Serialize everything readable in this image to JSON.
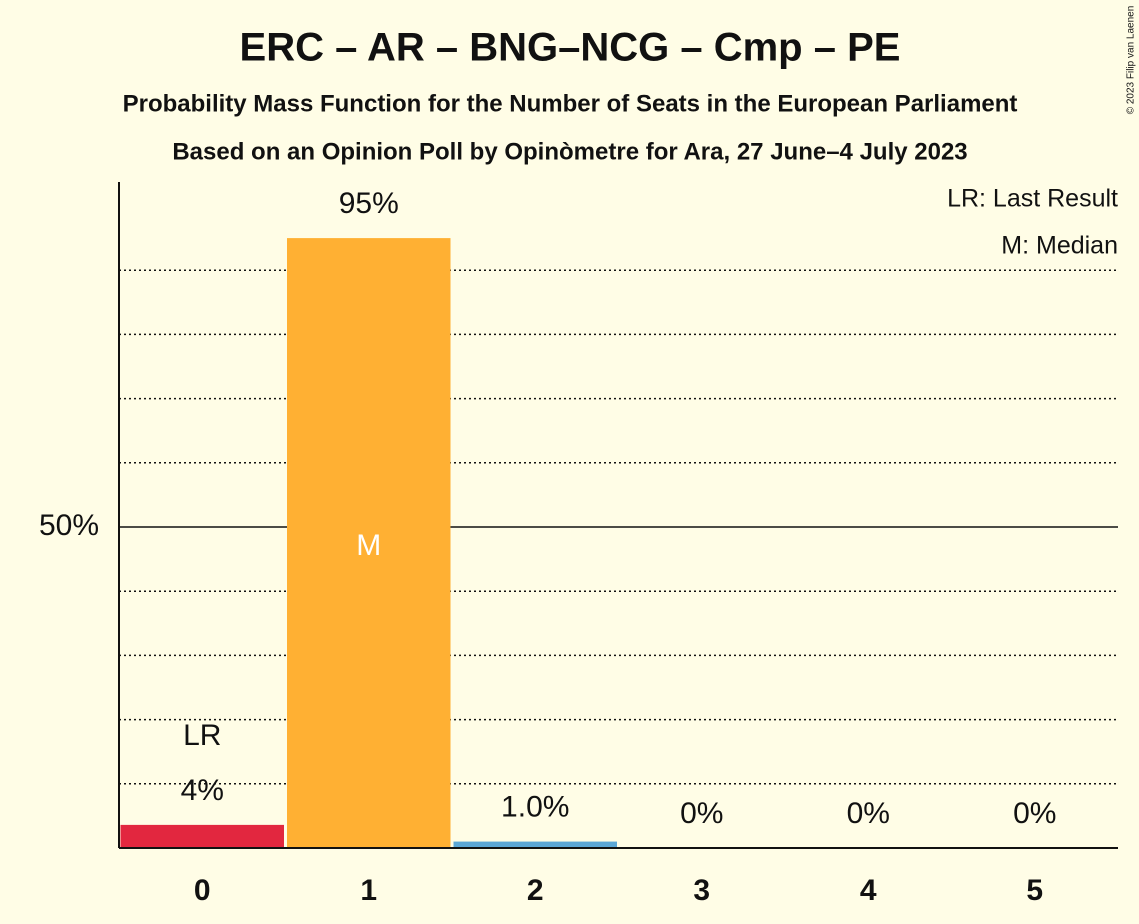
{
  "chart_data": {
    "type": "bar",
    "title": "ERC – AR – BNG–NCG – Cmp – PE",
    "subtitle": "Probability Mass Function for the Number of Seats in the European Parliament",
    "caption": "Based on an Opinion Poll by Opinòmetre for Ara, 27 June–4 July 2023",
    "copyright": "© 2023 Filip van Laenen",
    "categories": [
      "0",
      "1",
      "2",
      "3",
      "4",
      "5"
    ],
    "values": [
      3.6,
      95,
      1.0,
      0,
      0,
      0
    ],
    "value_labels": [
      "4%",
      "95%",
      "1.0%",
      "0%",
      "0%",
      "0%"
    ],
    "colors": [
      "#e2273f",
      "#ffb033",
      "#5ba7d6",
      null,
      null,
      null
    ],
    "ylim": [
      0,
      100
    ],
    "yticks": [
      {
        "value": 50,
        "label": "50%"
      }
    ],
    "minor_yticks": [
      10,
      20,
      30,
      40,
      60,
      70,
      80,
      90
    ],
    "grid": true,
    "last_result": 0,
    "last_result_label": "LR",
    "median": 1,
    "median_label": "M",
    "legend": [
      "LR: Last Result",
      "M: Median"
    ],
    "legend_position": "top-right"
  }
}
